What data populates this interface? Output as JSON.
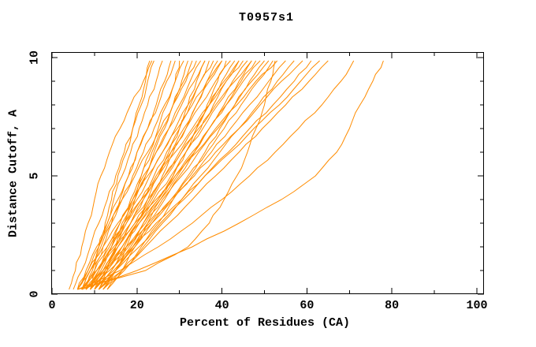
{
  "chart_data": {
    "type": "line",
    "title": "T0957s1",
    "xlabel": "Percent of Residues (CA)",
    "ylabel": "Distance Cutoff, A",
    "xlim": [
      0,
      100
    ],
    "ylim": [
      0,
      10
    ],
    "grid": false,
    "legend_position": "none",
    "line_color": "#ff8c00",
    "frame_color": "#000000",
    "x_ticks_major": [
      0,
      20,
      40,
      60,
      80,
      100
    ],
    "x_ticks_minor": [
      10,
      30,
      50,
      70,
      90
    ],
    "y_ticks_major": [
      0,
      5,
      10
    ],
    "y_ticks_minor": [
      1,
      2,
      3,
      4,
      6,
      7,
      8,
      9
    ],
    "cutoffs": [
      0.2,
      1,
      2,
      3,
      4,
      5,
      6,
      7,
      8,
      9,
      9.8
    ],
    "series": [
      [
        8,
        9.5,
        11,
        12.5,
        14,
        15.5,
        17.5,
        19,
        20.5,
        22,
        23
      ],
      [
        7,
        9,
        11,
        13,
        14.5,
        16.5,
        18.5,
        20.5,
        22.5,
        24.5,
        26
      ],
      [
        9,
        10,
        12,
        14,
        16,
        18,
        20,
        22.5,
        24.5,
        26.5,
        28
      ],
      [
        6,
        8.5,
        11,
        13,
        15.5,
        18,
        20,
        22.5,
        25,
        27,
        29
      ],
      [
        10,
        12.5,
        15,
        17,
        19,
        21,
        23,
        25,
        27,
        29,
        30
      ],
      [
        7,
        9,
        11.5,
        14,
        16.5,
        19,
        21.5,
        24,
        26.5,
        29,
        31
      ],
      [
        11,
        13,
        15,
        17.5,
        19.5,
        22,
        24,
        26.5,
        28.5,
        30.5,
        32
      ],
      [
        8,
        11,
        13.5,
        16,
        18.5,
        21,
        23.5,
        26,
        28.5,
        31,
        33
      ],
      [
        6,
        8,
        10.5,
        13.5,
        16.5,
        19.5,
        22.5,
        25.5,
        28.5,
        31.5,
        34
      ],
      [
        9,
        11.5,
        14,
        16.5,
        19.5,
        22,
        24.5,
        27.5,
        30,
        32.5,
        35
      ],
      [
        12,
        15,
        17.5,
        20,
        22.5,
        25,
        27.5,
        30,
        32,
        34,
        36
      ],
      [
        7,
        10,
        13,
        16,
        19,
        21.5,
        24.5,
        27.5,
        30.5,
        33.5,
        36
      ],
      [
        10,
        12.5,
        15.5,
        18.5,
        21.5,
        24,
        27,
        30,
        32.5,
        35,
        37
      ],
      [
        8,
        11,
        14,
        17,
        20,
        23,
        26,
        29,
        32,
        35,
        38
      ],
      [
        11,
        14,
        17,
        20,
        23,
        26,
        28.5,
        31.5,
        34,
        36.5,
        39
      ],
      [
        6,
        8.5,
        12,
        15.5,
        19,
        22.5,
        26,
        29.5,
        33,
        36.5,
        40
      ],
      [
        9,
        12,
        15.5,
        18.5,
        21.5,
        25,
        28,
        31,
        34,
        37,
        40
      ],
      [
        13,
        16.5,
        19.5,
        22.5,
        25.5,
        28.5,
        31.5,
        34,
        36.5,
        39,
        41
      ],
      [
        7,
        10.5,
        14,
        17.5,
        21,
        24.5,
        28,
        31.5,
        35,
        38.5,
        42
      ],
      [
        10,
        13,
        16.5,
        20,
        23.5,
        27,
        30.5,
        34,
        37,
        40,
        43
      ],
      [
        8,
        12,
        15.5,
        19.5,
        23,
        26.5,
        30,
        33.5,
        37,
        40.5,
        44
      ],
      [
        12,
        15,
        18.5,
        21.5,
        25,
        28.5,
        31.5,
        35,
        38,
        41,
        44
      ],
      [
        6,
        9,
        13,
        17,
        21,
        25,
        29,
        33,
        37,
        41,
        45
      ],
      [
        9,
        12.5,
        16.5,
        20.5,
        24,
        28,
        31.5,
        35.5,
        39,
        42.5,
        46
      ],
      [
        11,
        15,
        19,
        22.5,
        26.5,
        30,
        33.5,
        37,
        40.5,
        44,
        47
      ],
      [
        7,
        10.5,
        14.5,
        18.5,
        22.5,
        26.5,
        30.5,
        34.5,
        38.5,
        43,
        47
      ],
      [
        10,
        14,
        18,
        21.5,
        25.5,
        29.5,
        33.5,
        37,
        41,
        44.5,
        48
      ],
      [
        8,
        12,
        16.5,
        20.5,
        25,
        29,
        33,
        37,
        41,
        45,
        49
      ],
      [
        13,
        17,
        21,
        25,
        28.5,
        32.5,
        36,
        39.5,
        43,
        46.5,
        50
      ],
      [
        9,
        13,
        17.5,
        22,
        26,
        30.5,
        34.5,
        39,
        43,
        47,
        51
      ],
      [
        11,
        15,
        19.5,
        23.5,
        28,
        32,
        36.5,
        40.5,
        44.5,
        48.5,
        52
      ],
      [
        7,
        10.5,
        15,
        19.5,
        24.5,
        29,
        34,
        38.5,
        43.5,
        48,
        53
      ],
      [
        10,
        14.5,
        19,
        23.5,
        28.5,
        33,
        37.5,
        42,
        46.5,
        51,
        55
      ],
      [
        12,
        16.5,
        21.5,
        26,
        30.5,
        35,
        39.5,
        44,
        48.5,
        53,
        57
      ],
      [
        8,
        12.5,
        17.5,
        23,
        28,
        33.5,
        38.5,
        44,
        49,
        54,
        59
      ],
      [
        10,
        15,
        20.5,
        25.5,
        31,
        36,
        41.5,
        46.5,
        52,
        57,
        61
      ],
      [
        9,
        13.5,
        19,
        24.5,
        30.5,
        36,
        42,
        47.5,
        53.5,
        58.5,
        63
      ],
      [
        11,
        16.5,
        22,
        27.5,
        33,
        38.5,
        44,
        49.5,
        55,
        60.5,
        65
      ],
      [
        6,
        22,
        32,
        37,
        40.5,
        43.5,
        46,
        48,
        50,
        51.5,
        52.5
      ],
      [
        6,
        16,
        25,
        33,
        40,
        46.5,
        52.5,
        58,
        63.5,
        68,
        71
      ],
      [
        7,
        20,
        33,
        44,
        54,
        62,
        67,
        70,
        72.5,
        75.5,
        78
      ],
      [
        5,
        7,
        9,
        11,
        13,
        15,
        17,
        19,
        21,
        22.5,
        24
      ],
      [
        4,
        5.5,
        7,
        8.5,
        10,
        11.5,
        13.5,
        16,
        18.5,
        21.5,
        23.5
      ]
    ]
  }
}
